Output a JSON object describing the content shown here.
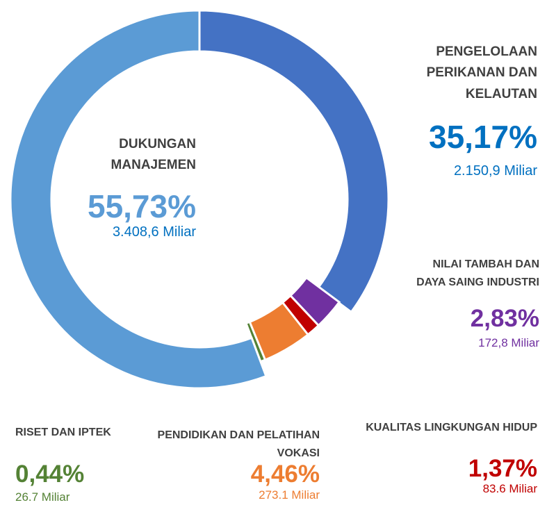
{
  "chart_data": {
    "type": "donut",
    "series": [
      {
        "name": "PENGELOLAAN PERIKANAN DAN KELAUTAN",
        "color": "#4472c4",
        "values": [
          35.17
        ],
        "value_labels": [
          "35,17%"
        ],
        "amount_labels": [
          "2.150,9 Miliar"
        ]
      },
      {
        "name": "NILAI TAMBAH DAN DAYA SAING INDUSTRI",
        "color": "#7030a0",
        "values": [
          2.83
        ],
        "value_labels": [
          "2,83%"
        ],
        "amount_labels": [
          "172,8 Miliar"
        ]
      },
      {
        "name": "KUALITAS LINGKUNGAN HIDUP",
        "color": "#c00000",
        "values": [
          1.37
        ],
        "value_labels": [
          "1,37%"
        ],
        "amount_labels": [
          "83.6 Miliar"
        ]
      },
      {
        "name": "PENDIDIKAN DAN PELATIHAN VOKASI",
        "color": "#ed7d31",
        "values": [
          4.46
        ],
        "value_labels": [
          "4,46%"
        ],
        "amount_labels": [
          "273.1 Miliar"
        ]
      },
      {
        "name": "RISET DAN IPTEK",
        "color": "#548235",
        "values": [
          0.44
        ],
        "value_labels": [
          "0,44%"
        ],
        "amount_labels": [
          "26.7 Miliar"
        ]
      },
      {
        "name": "DUKUNGAN MANAJEMEN",
        "color": "#5b9bd5",
        "values": [
          55.73
        ],
        "value_labels": [
          "55,73%"
        ],
        "amount_labels": [
          "3.408,6 Miliar"
        ]
      }
    ]
  }
}
